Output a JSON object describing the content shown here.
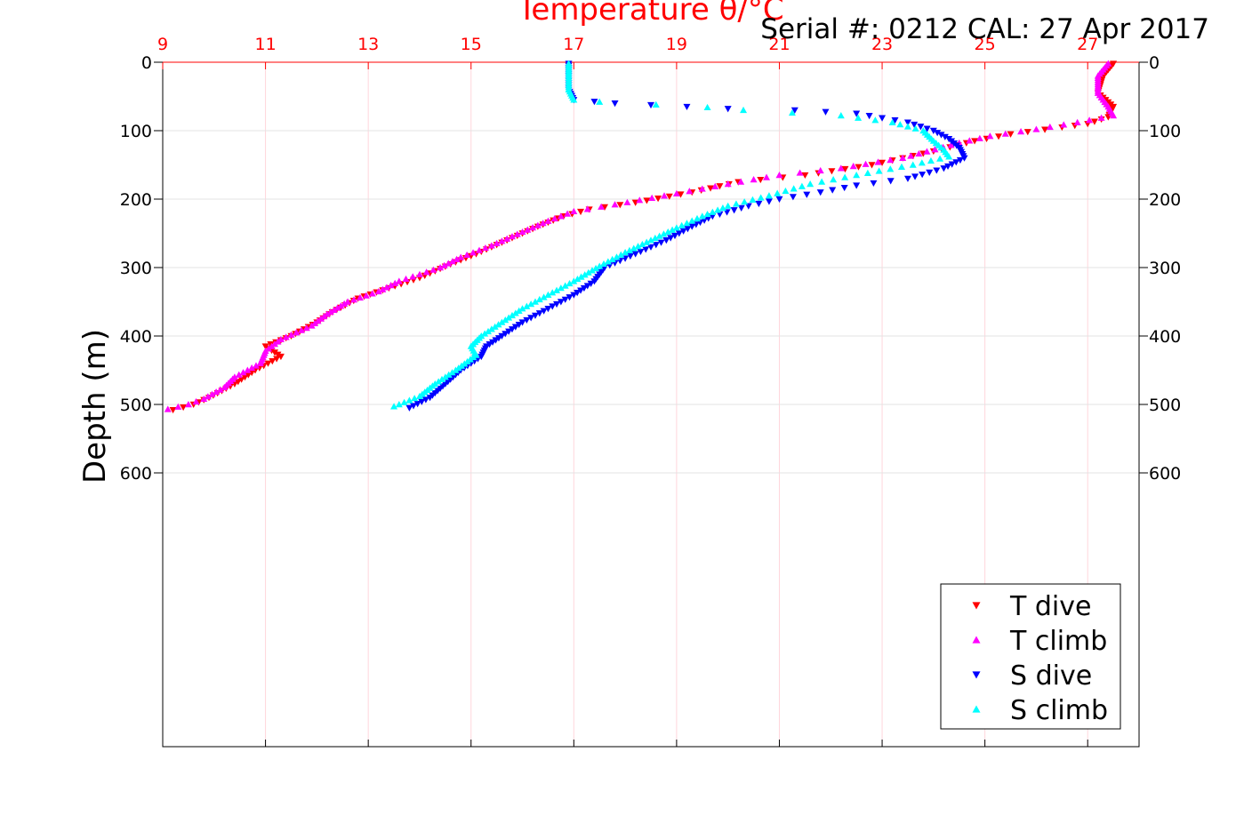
{
  "chart_data": {
    "type": "scatter",
    "title": "Temperature θ/°C",
    "annotation": "Serial #: 0212  CAL: 27 Apr 2017",
    "xlabel": "Temperature θ/°C",
    "ylabel": "Depth (m)",
    "xlim": [
      9,
      28
    ],
    "ylim": [
      0,
      1000
    ],
    "y_reversed": true,
    "x_ticks": [
      "9",
      "11",
      "13",
      "15",
      "17",
      "19",
      "21",
      "23",
      "25",
      "27"
    ],
    "y_ticks": [
      "0",
      "100",
      "200",
      "300",
      "400",
      "500",
      "600"
    ],
    "grid": true,
    "legend_position": "bottom-right",
    "colors": {
      "T dive": "#ff0000",
      "T climb": "#ff00ff",
      "S dive": "#0000ff",
      "S climb": "#00ffff",
      "axis_top": "#ff0000",
      "grid": "#e8e8e8"
    },
    "series": [
      {
        "name": "T dive",
        "marker": "triangle-down",
        "color": "#ff0000",
        "points": [
          [
            27.5,
            2
          ],
          [
            27.3,
            20
          ],
          [
            27.2,
            45
          ],
          [
            27.5,
            65
          ],
          [
            27.4,
            80
          ],
          [
            27.0,
            90
          ],
          [
            26.5,
            95
          ],
          [
            25.5,
            105
          ],
          [
            24.8,
            115
          ],
          [
            24.0,
            130
          ],
          [
            22.8,
            150
          ],
          [
            21.5,
            165
          ],
          [
            20.2,
            175
          ],
          [
            19.3,
            190
          ],
          [
            18.2,
            205
          ],
          [
            17.3,
            215
          ],
          [
            16.8,
            225
          ],
          [
            16.3,
            240
          ],
          [
            15.7,
            260
          ],
          [
            15.1,
            280
          ],
          [
            14.6,
            295
          ],
          [
            14.0,
            315
          ],
          [
            13.4,
            330
          ],
          [
            12.8,
            345
          ],
          [
            12.3,
            365
          ],
          [
            12.0,
            380
          ],
          [
            11.5,
            400
          ],
          [
            11.0,
            415
          ],
          [
            11.3,
            430
          ],
          [
            10.8,
            450
          ],
          [
            10.4,
            470
          ],
          [
            9.9,
            490
          ],
          [
            9.6,
            500
          ],
          [
            9.2,
            508
          ]
        ]
      },
      {
        "name": "T climb",
        "marker": "triangle-up",
        "color": "#ff00ff",
        "points": [
          [
            27.4,
            2
          ],
          [
            27.2,
            20
          ],
          [
            27.2,
            45
          ],
          [
            27.4,
            65
          ],
          [
            27.5,
            78
          ],
          [
            26.8,
            88
          ],
          [
            26.0,
            98
          ],
          [
            25.1,
            108
          ],
          [
            24.5,
            118
          ],
          [
            23.4,
            140
          ],
          [
            22.2,
            155
          ],
          [
            21.0,
            165
          ],
          [
            20.0,
            178
          ],
          [
            19.0,
            192
          ],
          [
            17.8,
            208
          ],
          [
            17.0,
            218
          ],
          [
            16.5,
            232
          ],
          [
            16.0,
            248
          ],
          [
            15.4,
            268
          ],
          [
            14.8,
            285
          ],
          [
            14.4,
            300
          ],
          [
            13.6,
            320
          ],
          [
            13.2,
            335
          ],
          [
            12.6,
            350
          ],
          [
            12.2,
            368
          ],
          [
            11.9,
            385
          ],
          [
            11.3,
            405
          ],
          [
            11.0,
            422
          ],
          [
            10.9,
            440
          ],
          [
            10.4,
            460
          ],
          [
            10.2,
            475
          ],
          [
            9.8,
            492
          ],
          [
            9.5,
            500
          ],
          [
            9.1,
            507
          ]
        ]
      },
      {
        "name": "S dive",
        "marker": "triangle-down",
        "color": "#0000ff",
        "points": [
          [
            16.9,
            2
          ],
          [
            16.9,
            20
          ],
          [
            16.9,
            40
          ],
          [
            17.0,
            55
          ],
          [
            17.8,
            60
          ],
          [
            19.2,
            65
          ],
          [
            20.0,
            68
          ],
          [
            21.3,
            70
          ],
          [
            22.5,
            75
          ],
          [
            23.5,
            88
          ],
          [
            24.0,
            100
          ],
          [
            24.3,
            112
          ],
          [
            24.5,
            125
          ],
          [
            24.6,
            140
          ],
          [
            24.2,
            155
          ],
          [
            23.5,
            170
          ],
          [
            22.5,
            180
          ],
          [
            21.8,
            190
          ],
          [
            21.0,
            200
          ],
          [
            20.4,
            210
          ],
          [
            19.7,
            225
          ],
          [
            19.3,
            240
          ],
          [
            18.8,
            260
          ],
          [
            18.2,
            280
          ],
          [
            17.6,
            300
          ],
          [
            17.4,
            320
          ],
          [
            17.0,
            340
          ],
          [
            16.5,
            360
          ],
          [
            16.0,
            380
          ],
          [
            15.6,
            400
          ],
          [
            15.3,
            415
          ],
          [
            15.2,
            430
          ],
          [
            14.8,
            450
          ],
          [
            14.5,
            470
          ],
          [
            14.2,
            490
          ],
          [
            13.8,
            505
          ]
        ]
      },
      {
        "name": "S climb",
        "marker": "triangle-up",
        "color": "#00ffff",
        "points": [
          [
            16.9,
            2
          ],
          [
            16.9,
            20
          ],
          [
            16.9,
            40
          ],
          [
            17.0,
            55
          ],
          [
            17.5,
            58
          ],
          [
            18.6,
            62
          ],
          [
            19.6,
            66
          ],
          [
            20.3,
            70
          ],
          [
            22.2,
            78
          ],
          [
            23.2,
            88
          ],
          [
            23.8,
            100
          ],
          [
            24.0,
            115
          ],
          [
            24.2,
            128
          ],
          [
            24.3,
            138
          ],
          [
            23.6,
            150
          ],
          [
            22.5,
            165
          ],
          [
            21.6,
            178
          ],
          [
            20.8,
            195
          ],
          [
            20.0,
            210
          ],
          [
            19.5,
            225
          ],
          [
            19.0,
            242
          ],
          [
            18.5,
            260
          ],
          [
            18.0,
            278
          ],
          [
            17.5,
            298
          ],
          [
            17.0,
            320
          ],
          [
            16.5,
            340
          ],
          [
            16.0,
            360
          ],
          [
            15.6,
            380
          ],
          [
            15.2,
            400
          ],
          [
            15.0,
            415
          ],
          [
            15.1,
            428
          ],
          [
            14.7,
            450
          ],
          [
            14.3,
            470
          ],
          [
            14.0,
            488
          ],
          [
            13.5,
            503
          ]
        ]
      }
    ]
  }
}
